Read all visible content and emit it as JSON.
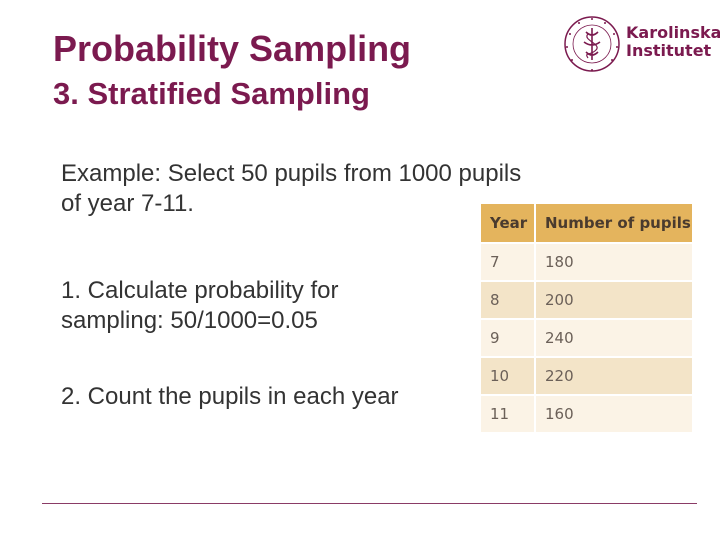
{
  "slide": {
    "title": "Probability Sampling",
    "subtitle": "3. Stratified Sampling",
    "logo": {
      "line1": "Karolinska",
      "line2": "Institutet",
      "seal_text": "KAROLINSKA INSTITUTET ANNO 1810",
      "icon": "karolinska-seal-icon"
    },
    "paragraphs": [
      "Example: Select 50 pupils from 1000 pupils of year 7-11.",
      "1. Calculate probability for sampling:  50/1000=0.05",
      "2. Count the pupils in each year"
    ],
    "table": {
      "headers": [
        "Year",
        "Number of pupils"
      ],
      "rows": [
        [
          "7",
          "180"
        ],
        [
          "8",
          "200"
        ],
        [
          "9",
          "240"
        ],
        [
          "10",
          "220"
        ],
        [
          "11",
          "160"
        ]
      ]
    },
    "colors": {
      "brand": "#7b1a4f",
      "table_header": "#e4b45d",
      "row_light": "#fbf3e6",
      "row_dark": "#f3e4c8"
    }
  }
}
